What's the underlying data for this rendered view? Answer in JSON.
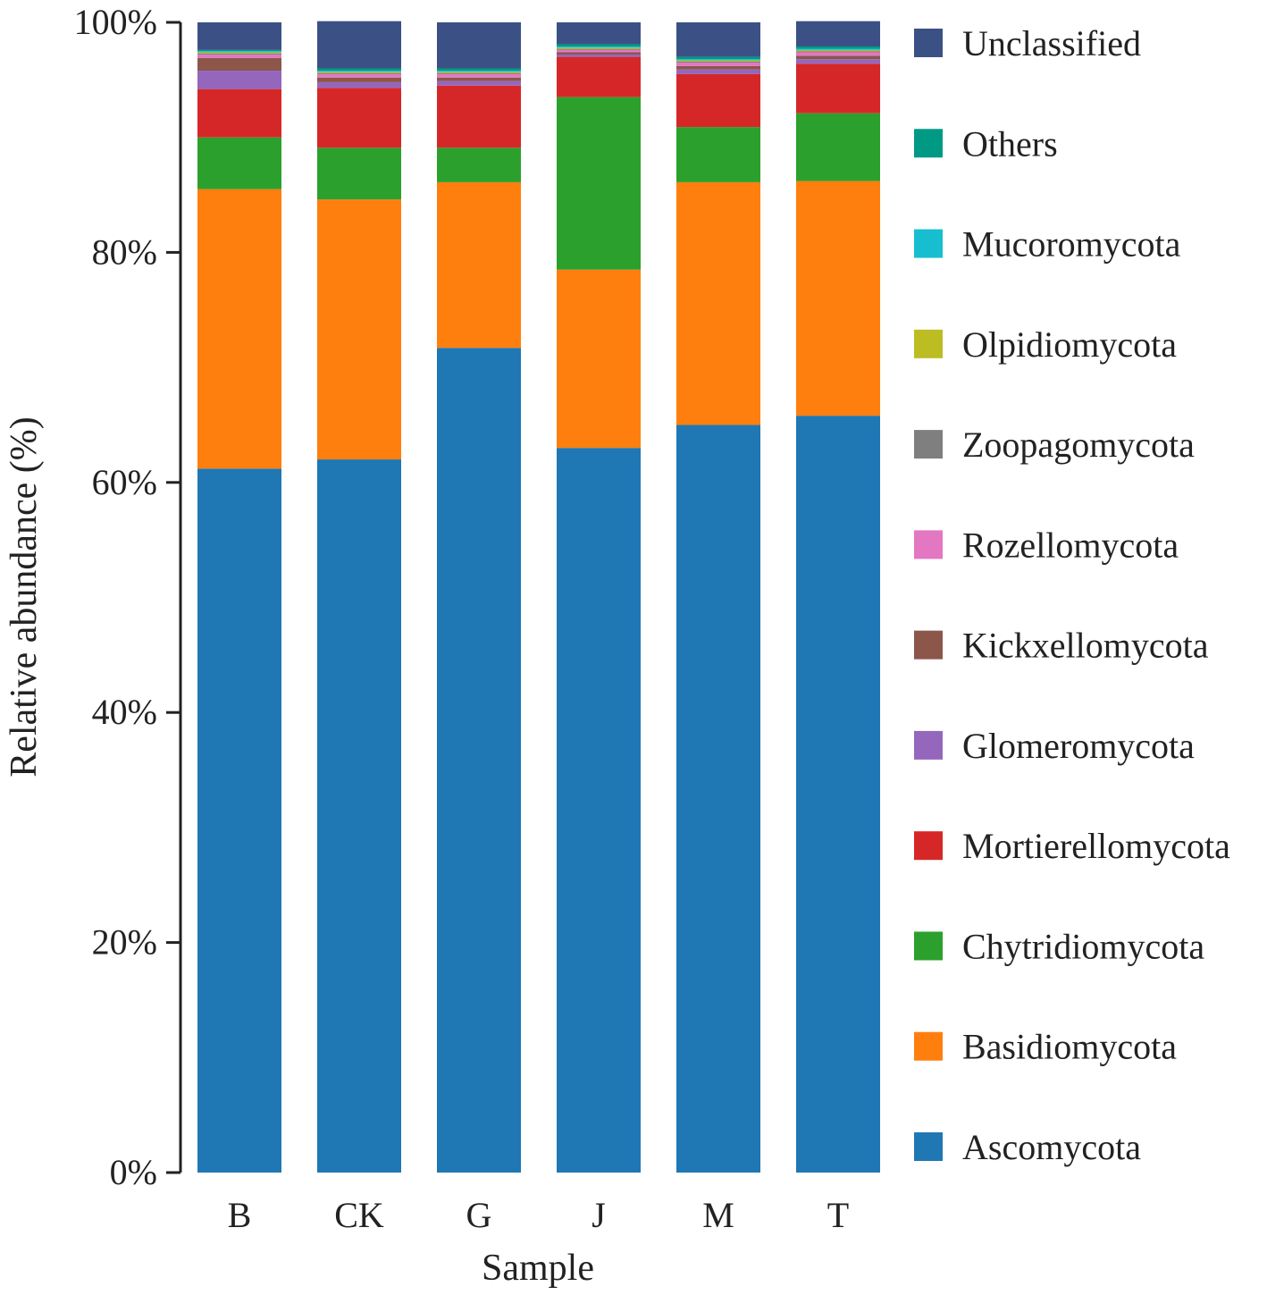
{
  "chart_data": {
    "type": "bar",
    "stacked": true,
    "xlabel": "Sample",
    "ylabel": "Relative abundance (%)",
    "ylim": [
      0,
      100
    ],
    "yticks": [
      "0%",
      "20%",
      "40%",
      "60%",
      "80%",
      "100%"
    ],
    "ytick_values": [
      0,
      20,
      40,
      60,
      80,
      100
    ],
    "categories": [
      "B",
      "CK",
      "G",
      "J",
      "M",
      "T"
    ],
    "legend_position": "right",
    "series": [
      {
        "name": "Ascomycota",
        "color": "#1f77b4",
        "values": [
          61.2,
          62.0,
          71.7,
          63.0,
          65.0,
          65.8
        ]
      },
      {
        "name": "Basidiomycota",
        "color": "#ff7f0e",
        "values": [
          24.3,
          22.6,
          14.4,
          15.5,
          21.1,
          20.4
        ]
      },
      {
        "name": "Chytridiomycota",
        "color": "#2ca02c",
        "values": [
          4.5,
          4.5,
          3.0,
          15.0,
          4.8,
          5.9
        ]
      },
      {
        "name": "Mortierellomycota",
        "color": "#d62728",
        "values": [
          4.2,
          5.2,
          5.4,
          3.5,
          4.6,
          4.3
        ]
      },
      {
        "name": "Glomeromycota",
        "color": "#9467bd",
        "values": [
          1.6,
          0.5,
          0.4,
          0.2,
          0.4,
          0.4
        ]
      },
      {
        "name": "Kickxellomycota",
        "color": "#8c564b",
        "values": [
          1.1,
          0.4,
          0.3,
          0.2,
          0.3,
          0.3
        ]
      },
      {
        "name": "Rozellomycota",
        "color": "#e377c2",
        "values": [
          0.3,
          0.3,
          0.3,
          0.2,
          0.3,
          0.3
        ]
      },
      {
        "name": "Zoopagomycota",
        "color": "#7f7f7f",
        "values": [
          0.1,
          0.1,
          0.1,
          0.1,
          0.1,
          0.1
        ]
      },
      {
        "name": "Olpidiomycota",
        "color": "#bcbd22",
        "values": [
          0.1,
          0.1,
          0.1,
          0.1,
          0.1,
          0.1
        ]
      },
      {
        "name": "Mucoromycota",
        "color": "#17becf",
        "values": [
          0.1,
          0.1,
          0.1,
          0.1,
          0.1,
          0.1
        ]
      },
      {
        "name": "Others",
        "color": "#009a84",
        "values": [
          0.1,
          0.2,
          0.2,
          0.2,
          0.2,
          0.2
        ]
      },
      {
        "name": "Unclassified",
        "color": "#3b5185",
        "values": [
          2.4,
          4.1,
          4.0,
          1.9,
          3.0,
          2.2
        ]
      }
    ]
  }
}
